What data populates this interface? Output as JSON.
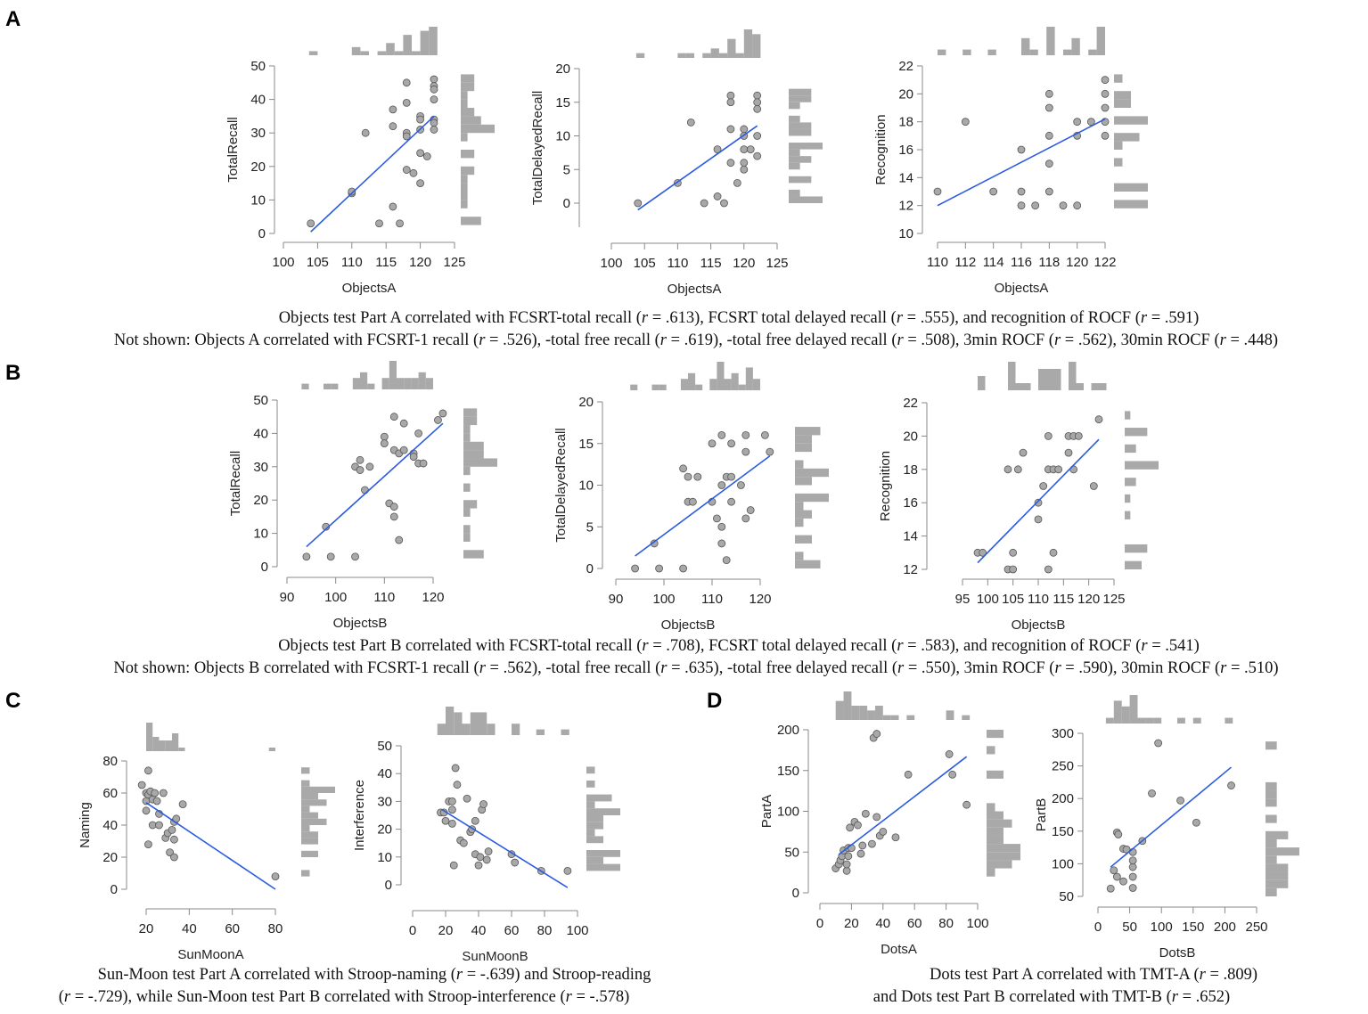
{
  "panel_labels": [
    "A",
    "B",
    "C",
    "D"
  ],
  "captions": {
    "A1": "Objects test Part A correlated with FCSRT-total recall  (r = .613), FCSRT total delayed recall (r = .555), and recognition of ROCF (r = .591)",
    "A2": "Not shown: Objects A correlated with FCSRT-1 recall (r = .526), -total free recall (r = .619), -total free delayed recall (r = .508), 3min ROCF (r = .562), 30min ROCF (r = .448)",
    "B1": "Objects test Part B correlated with FCSRT-total recall  (r = .708), FCSRT total delayed recall (r = .583), and recognition of ROCF (r = .541)",
    "B2": "Not shown: Objects B correlated with FCSRT-1 recall (r = .562), -total free recall (r = .635), -total free delayed recall (r = .550), 3min ROCF (r = .590), 30min ROCF (r = .510)",
    "C1": "Sun-Moon test Part A correlated with Stroop-naming (r = -.639) and Stroop-reading",
    "C2": "(r = -.729), while Sun-Moon test Part B correlated with Stroop-interference (r = -.578)",
    "D1": "Dots test Part A correlated with TMT-A (r = .809)",
    "D2": "and Dots test Part B correlated with TMT-B (r = .652)"
  },
  "colors": {
    "point": "#a8a8a8",
    "line": "#2b5be0",
    "hist": "#a9a9a9",
    "axis": "#888888"
  },
  "chart_data": [
    {
      "id": "A1",
      "type": "scatter",
      "xlabel": "ObjectsA",
      "ylabel": "TotalRecall",
      "xlim": [
        100,
        125
      ],
      "ylim": [
        0,
        50
      ],
      "xticks": [
        100,
        105,
        110,
        115,
        120,
        125
      ],
      "yticks": [
        0,
        10,
        20,
        30,
        40,
        50
      ],
      "fit": [
        [
          104,
          0.5
        ],
        [
          122,
          35
        ]
      ],
      "points": [
        [
          104,
          3
        ],
        [
          110,
          12
        ],
        [
          110,
          12.5
        ],
        [
          112,
          30
        ],
        [
          114,
          3
        ],
        [
          116,
          8
        ],
        [
          116,
          32
        ],
        [
          116,
          37
        ],
        [
          117,
          3
        ],
        [
          118,
          45
        ],
        [
          118,
          39
        ],
        [
          118,
          30
        ],
        [
          118,
          29
        ],
        [
          118,
          19
        ],
        [
          119,
          18
        ],
        [
          120,
          35
        ],
        [
          120,
          34
        ],
        [
          120,
          31
        ],
        [
          120,
          24
        ],
        [
          120,
          15
        ],
        [
          121,
          23
        ],
        [
          122,
          46
        ],
        [
          122,
          44
        ],
        [
          122,
          43
        ],
        [
          122,
          40
        ],
        [
          122,
          34
        ],
        [
          122,
          33
        ],
        [
          122,
          31
        ]
      ]
    },
    {
      "id": "A2",
      "type": "scatter",
      "xlabel": "ObjectsA",
      "ylabel": "TotalDelayedRecall",
      "xlim": [
        100,
        125
      ],
      "ylim": [
        0,
        20
      ],
      "xticks": [
        100,
        105,
        110,
        115,
        120,
        125
      ],
      "yticks": [
        0,
        5,
        10,
        15,
        20
      ],
      "fit": [
        [
          104,
          -1
        ],
        [
          122,
          11.5
        ]
      ],
      "points": [
        [
          104,
          0
        ],
        [
          110,
          3
        ],
        [
          112,
          12
        ],
        [
          114,
          0
        ],
        [
          116,
          1
        ],
        [
          116,
          8
        ],
        [
          117,
          0
        ],
        [
          118,
          16
        ],
        [
          118,
          15
        ],
        [
          118,
          11
        ],
        [
          118,
          6
        ],
        [
          119,
          3
        ],
        [
          120,
          11
        ],
        [
          120,
          10
        ],
        [
          120,
          8
        ],
        [
          120,
          6
        ],
        [
          120,
          5
        ],
        [
          121,
          8
        ],
        [
          122,
          16
        ],
        [
          122,
          15
        ],
        [
          122,
          14
        ],
        [
          122,
          10
        ],
        [
          122,
          7
        ]
      ]
    },
    {
      "id": "A3",
      "type": "scatter",
      "xlabel": "ObjectsA",
      "ylabel": "Recognition",
      "xlim": [
        110,
        122
      ],
      "ylim": [
        10,
        22
      ],
      "xticks": [
        110,
        112,
        114,
        116,
        118,
        120,
        122
      ],
      "yticks": [
        10,
        12,
        14,
        16,
        18,
        20,
        22
      ],
      "fit": [
        [
          110,
          12
        ],
        [
          122,
          18.2
        ]
      ],
      "points": [
        [
          110,
          13
        ],
        [
          112,
          18
        ],
        [
          114,
          13
        ],
        [
          116,
          16
        ],
        [
          116,
          13
        ],
        [
          116,
          12
        ],
        [
          117,
          12
        ],
        [
          118,
          20
        ],
        [
          118,
          19
        ],
        [
          118,
          17
        ],
        [
          118,
          15
        ],
        [
          118,
          13
        ],
        [
          119,
          12
        ],
        [
          120,
          18
        ],
        [
          120,
          17
        ],
        [
          120,
          12
        ],
        [
          121,
          18
        ],
        [
          122,
          21
        ],
        [
          122,
          20
        ],
        [
          122,
          19
        ],
        [
          122,
          18
        ],
        [
          122,
          17
        ]
      ]
    },
    {
      "id": "B1",
      "type": "scatter",
      "xlabel": "ObjectsB",
      "ylabel": "TotalRecall",
      "xlim": [
        90,
        120
      ],
      "ylim": [
        0,
        50
      ],
      "xticks": [
        90,
        100,
        110,
        120
      ],
      "yticks": [
        0,
        10,
        20,
        30,
        40,
        50
      ],
      "fit": [
        [
          94,
          6
        ],
        [
          122,
          43
        ]
      ],
      "points": [
        [
          94,
          3
        ],
        [
          98,
          12
        ],
        [
          99,
          3
        ],
        [
          104,
          3
        ],
        [
          104,
          30
        ],
        [
          105,
          32
        ],
        [
          105,
          29
        ],
        [
          106,
          23
        ],
        [
          107,
          30
        ],
        [
          110,
          39
        ],
        [
          110,
          37
        ],
        [
          111,
          19
        ],
        [
          112,
          18
        ],
        [
          112,
          15
        ],
        [
          112,
          45
        ],
        [
          112,
          35
        ],
        [
          113,
          8
        ],
        [
          113,
          34
        ],
        [
          114,
          43
        ],
        [
          114,
          35
        ],
        [
          116,
          34
        ],
        [
          116,
          33
        ],
        [
          117,
          40
        ],
        [
          117,
          31
        ],
        [
          118,
          31
        ],
        [
          121,
          44
        ],
        [
          122,
          46
        ]
      ]
    },
    {
      "id": "B2",
      "type": "scatter",
      "xlabel": "ObjectsB",
      "ylabel": "TotalDelayedRecall",
      "xlim": [
        90,
        120
      ],
      "ylim": [
        0,
        20
      ],
      "xticks": [
        90,
        100,
        110,
        120
      ],
      "yticks": [
        0,
        5,
        10,
        15,
        20
      ],
      "fit": [
        [
          94,
          1.5
        ],
        [
          122,
          13.5
        ]
      ],
      "points": [
        [
          94,
          0
        ],
        [
          98,
          3
        ],
        [
          99,
          0
        ],
        [
          104,
          0
        ],
        [
          104,
          12
        ],
        [
          105,
          11
        ],
        [
          105,
          8
        ],
        [
          106,
          8
        ],
        [
          107,
          11
        ],
        [
          110,
          15
        ],
        [
          110,
          8
        ],
        [
          111,
          6
        ],
        [
          112,
          16
        ],
        [
          112,
          10
        ],
        [
          112,
          5
        ],
        [
          112,
          3
        ],
        [
          113,
          11
        ],
        [
          113,
          1
        ],
        [
          114,
          11
        ],
        [
          114,
          15
        ],
        [
          114,
          8
        ],
        [
          116,
          10
        ],
        [
          117,
          16
        ],
        [
          117,
          14
        ],
        [
          117,
          6
        ],
        [
          118,
          7
        ],
        [
          121,
          16
        ],
        [
          122,
          14
        ]
      ]
    },
    {
      "id": "B3",
      "type": "scatter",
      "xlabel": "ObjectsB",
      "ylabel": "Recognition",
      "xlim": [
        95,
        125
      ],
      "ylim": [
        12,
        22
      ],
      "xticks": [
        95,
        100,
        105,
        110,
        115,
        120,
        125
      ],
      "yticks": [
        12,
        14,
        16,
        18,
        20,
        22
      ],
      "fit": [
        [
          98,
          12.4
        ],
        [
          122,
          19.8
        ]
      ],
      "points": [
        [
          98,
          13
        ],
        [
          99,
          13
        ],
        [
          104,
          18
        ],
        [
          104,
          12
        ],
        [
          105,
          12
        ],
        [
          105,
          13
        ],
        [
          106,
          18
        ],
        [
          107,
          19
        ],
        [
          110,
          16
        ],
        [
          110,
          15
        ],
        [
          111,
          17
        ],
        [
          112,
          20
        ],
        [
          112,
          18
        ],
        [
          112,
          12
        ],
        [
          113,
          18
        ],
        [
          113,
          13
        ],
        [
          114,
          18
        ],
        [
          116,
          20
        ],
        [
          116,
          19
        ],
        [
          117,
          20
        ],
        [
          117,
          18
        ],
        [
          118,
          20
        ],
        [
          121,
          17
        ],
        [
          122,
          21
        ]
      ]
    },
    {
      "id": "C1",
      "type": "scatter",
      "xlabel": "SunMoonA",
      "ylabel": "Naming",
      "xlim": [
        20,
        80
      ],
      "ylim": [
        0,
        80
      ],
      "xticks": [
        20,
        40,
        60,
        80
      ],
      "yticks": [
        0,
        20,
        40,
        60,
        80
      ],
      "fit": [
        [
          20,
          54
        ],
        [
          80,
          0
        ]
      ],
      "points": [
        [
          18,
          65
        ],
        [
          20,
          60
        ],
        [
          20,
          55
        ],
        [
          20,
          49
        ],
        [
          21,
          74
        ],
        [
          21,
          59
        ],
        [
          21,
          28
        ],
        [
          22,
          61
        ],
        [
          23,
          56
        ],
        [
          23,
          40
        ],
        [
          24,
          60
        ],
        [
          25,
          55
        ],
        [
          26,
          47
        ],
        [
          26,
          40
        ],
        [
          28,
          60
        ],
        [
          29,
          32
        ],
        [
          30,
          35
        ],
        [
          31,
          23
        ],
        [
          32,
          37
        ],
        [
          33,
          42
        ],
        [
          33,
          31
        ],
        [
          33,
          20
        ],
        [
          34,
          44
        ],
        [
          37,
          53
        ],
        [
          80,
          8
        ]
      ]
    },
    {
      "id": "C2",
      "type": "scatter",
      "xlabel": "SunMoonB",
      "ylabel": "Interference",
      "xlim": [
        0,
        100
      ],
      "ylim": [
        0,
        50
      ],
      "xticks": [
        0,
        20,
        40,
        60,
        80,
        100
      ],
      "yticks": [
        0,
        10,
        20,
        30,
        40,
        50
      ],
      "fit": [
        [
          18,
          27
        ],
        [
          94,
          -1
        ]
      ],
      "points": [
        [
          17,
          26
        ],
        [
          19,
          26
        ],
        [
          20,
          23
        ],
        [
          22,
          30
        ],
        [
          24,
          30
        ],
        [
          24,
          27
        ],
        [
          24,
          22
        ],
        [
          25,
          7
        ],
        [
          26,
          42
        ],
        [
          27,
          36
        ],
        [
          29,
          16
        ],
        [
          31,
          15
        ],
        [
          33,
          31
        ],
        [
          35,
          19
        ],
        [
          36,
          20
        ],
        [
          38,
          23
        ],
        [
          38,
          11
        ],
        [
          40,
          7
        ],
        [
          41,
          10
        ],
        [
          42,
          27
        ],
        [
          43,
          29
        ],
        [
          45,
          9
        ],
        [
          46,
          12
        ],
        [
          60,
          11
        ],
        [
          62,
          8
        ],
        [
          78,
          5
        ],
        [
          94,
          5
        ]
      ]
    },
    {
      "id": "D1",
      "type": "scatter",
      "xlabel": "DotsA",
      "ylabel": "PartA",
      "xlim": [
        0,
        100
      ],
      "ylim": [
        0,
        200
      ],
      "xticks": [
        0,
        20,
        40,
        60,
        80,
        100
      ],
      "yticks": [
        0,
        50,
        100,
        150,
        200
      ],
      "fit": [
        [
          12,
          47
        ],
        [
          93,
          167
        ]
      ],
      "points": [
        [
          10,
          30
        ],
        [
          12,
          35
        ],
        [
          13,
          40
        ],
        [
          14,
          45
        ],
        [
          15,
          52
        ],
        [
          17,
          27
        ],
        [
          17,
          35
        ],
        [
          18,
          45
        ],
        [
          18,
          55
        ],
        [
          19,
          80
        ],
        [
          20,
          55
        ],
        [
          22,
          87
        ],
        [
          24,
          83
        ],
        [
          26,
          48
        ],
        [
          27,
          58
        ],
        [
          29,
          97
        ],
        [
          34,
          190
        ],
        [
          36,
          195
        ],
        [
          33,
          60
        ],
        [
          36,
          93
        ],
        [
          38,
          70
        ],
        [
          40,
          75
        ],
        [
          48,
          68
        ],
        [
          56,
          145
        ],
        [
          82,
          170
        ],
        [
          84,
          145
        ],
        [
          93,
          108
        ]
      ]
    },
    {
      "id": "D2",
      "type": "scatter",
      "xlabel": "DotsB",
      "ylabel": "PartB",
      "xlim": [
        0,
        250
      ],
      "ylim": [
        50,
        300
      ],
      "xticks": [
        0,
        50,
        100,
        150,
        200,
        250
      ],
      "yticks": [
        50,
        100,
        150,
        200,
        250,
        300
      ],
      "fit": [
        [
          20,
          95
        ],
        [
          210,
          248
        ]
      ],
      "points": [
        [
          20,
          62
        ],
        [
          25,
          90
        ],
        [
          30,
          80
        ],
        [
          30,
          148
        ],
        [
          32,
          145
        ],
        [
          40,
          123
        ],
        [
          45,
          122
        ],
        [
          40,
          73
        ],
        [
          55,
          63
        ],
        [
          55,
          80
        ],
        [
          55,
          95
        ],
        [
          55,
          105
        ],
        [
          55,
          118
        ],
        [
          70,
          135
        ],
        [
          95,
          285
        ],
        [
          85,
          208
        ],
        [
          130,
          197
        ],
        [
          155,
          163
        ],
        [
          210,
          220
        ]
      ]
    }
  ]
}
